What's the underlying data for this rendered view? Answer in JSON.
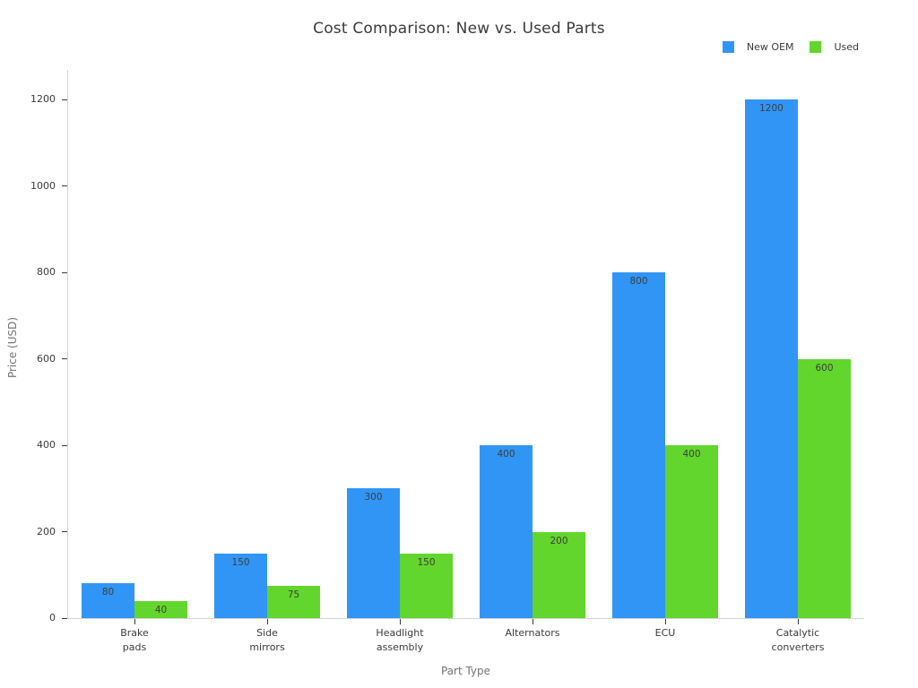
{
  "chart_data": {
    "type": "bar",
    "title": "Cost Comparison: New vs. Used Parts",
    "xlabel": "Part Type",
    "ylabel": "Price (USD)",
    "categories": [
      "Brake\npads",
      "Side\nmirrors",
      "Headlight\nassembly",
      "Alternators",
      "ECU",
      "Catalytic\nconverters"
    ],
    "series": [
      {
        "name": "New OEM",
        "color": "#3195f5",
        "values": [
          80,
          150,
          300,
          400,
          800,
          1200
        ]
      },
      {
        "name": "Used",
        "color": "#62d62c",
        "values": [
          40,
          75,
          150,
          200,
          400,
          600
        ]
      }
    ],
    "y_ticks": [
      0,
      200,
      400,
      600,
      800,
      1000,
      1200
    ],
    "ylim": [
      0,
      1200
    ],
    "grid": false,
    "legend_position": "top-right",
    "bar_value_labels": true,
    "value_label_position": "inside-top"
  }
}
